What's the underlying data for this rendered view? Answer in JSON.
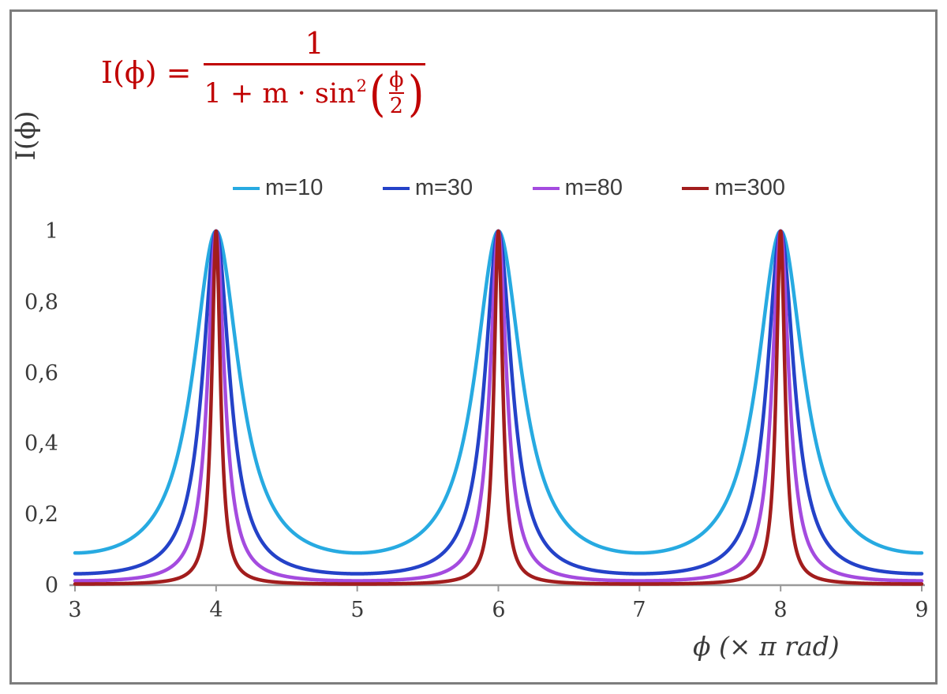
{
  "formula": {
    "lhs": "I(ϕ) =",
    "numerator": "1",
    "denom_prefix": "1 + m · sin",
    "denom_sup": "2",
    "open_paren": "(",
    "inner_num": "ϕ",
    "inner_den": "2",
    "close_paren": ")",
    "color": "#c00000"
  },
  "chart_data": {
    "type": "line",
    "title": "",
    "xlabel": "ϕ  (× π rad)",
    "ylabel": "I(ϕ)",
    "x_range": [
      3,
      9
    ],
    "ylim": [
      0,
      1
    ],
    "x_unit": "π rad",
    "x_tick_labels": [
      "3",
      "4",
      "5",
      "6",
      "7",
      "8",
      "9"
    ],
    "y_tick_labels": [
      "1",
      "0,8",
      "0,6",
      "0,4",
      "0,2",
      "0"
    ],
    "function": "I(ϕ) = 1 / (1 + m·sin²(ϕ/2))",
    "series": [
      {
        "name": "m=10",
        "m": 10,
        "color": "#27aae1"
      },
      {
        "name": "m=30",
        "m": 30,
        "color": "#2442c8"
      },
      {
        "name": "m=80",
        "m": 80,
        "color": "#a44bdf"
      },
      {
        "name": "m=300",
        "m": 300,
        "color": "#a21d1d"
      }
    ],
    "samples_per_unit": 500,
    "peaks_at_x": [
      4,
      6,
      8
    ],
    "peak_value": 1,
    "grid": false,
    "legend_position": "top-center"
  }
}
